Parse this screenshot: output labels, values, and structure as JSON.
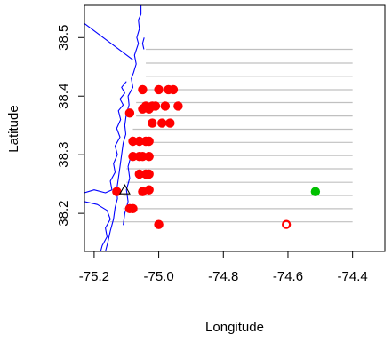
{
  "chart_data": {
    "type": "scatter",
    "xlabel": "Longitude",
    "ylabel": "Latitude",
    "xlim": [
      -75.23,
      -74.3
    ],
    "ylim": [
      38.135,
      38.555
    ],
    "x_ticks": [
      -75.2,
      -75.0,
      -74.8,
      -74.6,
      -74.4
    ],
    "x_tick_labels": [
      "-75.2",
      "-75.0",
      "-74.8",
      "-74.6",
      "-74.4"
    ],
    "y_ticks": [
      38.2,
      38.3,
      38.4,
      38.5
    ],
    "y_tick_labels": [
      "38.2",
      "38.3",
      "38.4",
      "38.5"
    ],
    "grid": false,
    "transects": {
      "color": "#c0c0c0",
      "lines": [
        {
          "x_start": -75.04,
          "x_end": -74.4,
          "y": 38.48
        },
        {
          "x_start": -75.04,
          "x_end": -74.4,
          "y": 38.4565
        },
        {
          "x_start": -75.04,
          "x_end": -74.4,
          "y": 38.434
        },
        {
          "x_start": -75.06,
          "x_end": -74.4,
          "y": 38.411
        },
        {
          "x_start": -75.07,
          "x_end": -74.4,
          "y": 38.389
        },
        {
          "x_start": -75.07,
          "x_end": -74.4,
          "y": 38.366
        },
        {
          "x_start": -75.08,
          "x_end": -74.4,
          "y": 38.3435
        },
        {
          "x_start": -75.09,
          "x_end": -74.4,
          "y": 38.321
        },
        {
          "x_start": -75.09,
          "x_end": -74.4,
          "y": 38.2985
        },
        {
          "x_start": -75.1,
          "x_end": -74.4,
          "y": 38.276
        },
        {
          "x_start": -75.1,
          "x_end": -74.4,
          "y": 38.253
        },
        {
          "x_start": -75.11,
          "x_end": -74.4,
          "y": 38.2305
        },
        {
          "x_start": -75.11,
          "x_end": -74.4,
          "y": 38.208
        },
        {
          "x_start": -75.15,
          "x_end": -74.4,
          "y": 38.1855
        }
      ]
    },
    "coastline": {
      "color": "#0000ff",
      "paths": [
        [
          [
            -75.23,
            38.524
          ],
          [
            -75.08,
            38.462
          ]
        ],
        [
          [
            -75.055,
            38.555
          ],
          [
            -75.055,
            38.54
          ],
          [
            -75.063,
            38.53
          ],
          [
            -75.06,
            38.515
          ],
          [
            -75.068,
            38.5
          ],
          [
            -75.063,
            38.49
          ],
          [
            -75.075,
            38.47
          ],
          [
            -75.07,
            38.455
          ],
          [
            -75.078,
            38.44
          ],
          [
            -75.085,
            38.43
          ],
          [
            -75.08,
            38.415
          ],
          [
            -75.095,
            38.4
          ],
          [
            -75.092,
            38.385
          ],
          [
            -75.1,
            38.37
          ],
          [
            -75.105,
            38.35
          ],
          [
            -75.102,
            38.335
          ],
          [
            -75.11,
            38.32
          ],
          [
            -75.115,
            38.3
          ],
          [
            -75.12,
            38.28
          ],
          [
            -75.125,
            38.26
          ],
          [
            -75.13,
            38.24
          ],
          [
            -75.128,
            38.225
          ],
          [
            -75.135,
            38.21
          ],
          [
            -75.14,
            38.19
          ],
          [
            -75.15,
            38.17
          ],
          [
            -75.158,
            38.15
          ],
          [
            -75.165,
            38.135
          ]
        ],
        [
          [
            -75.1,
            38.425
          ],
          [
            -75.115,
            38.415
          ],
          [
            -75.105,
            38.405
          ],
          [
            -75.12,
            38.395
          ],
          [
            -75.11,
            38.385
          ],
          [
            -75.125,
            38.375
          ],
          [
            -75.118,
            38.36
          ],
          [
            -75.13,
            38.345
          ],
          [
            -75.12,
            38.33
          ],
          [
            -75.135,
            38.315
          ],
          [
            -75.128,
            38.3
          ],
          [
            -75.14,
            38.285
          ],
          [
            -75.135,
            38.27
          ],
          [
            -75.15,
            38.255
          ],
          [
            -75.145,
            38.24
          ],
          [
            -75.165,
            38.235
          ],
          [
            -75.2,
            38.24
          ],
          [
            -75.23,
            38.235
          ]
        ],
        [
          [
            -75.23,
            38.22
          ],
          [
            -75.19,
            38.215
          ],
          [
            -75.16,
            38.205
          ],
          [
            -75.15,
            38.19
          ],
          [
            -75.165,
            38.175
          ],
          [
            -75.16,
            38.16
          ],
          [
            -75.175,
            38.145
          ],
          [
            -75.18,
            38.135
          ]
        ],
        [
          [
            -75.085,
            38.3
          ],
          [
            -75.095,
            38.28
          ],
          [
            -75.09,
            38.26
          ],
          [
            -75.1,
            38.24
          ],
          [
            -75.095,
            38.22
          ],
          [
            -75.105,
            38.2
          ],
          [
            -75.11,
            38.18
          ]
        ],
        [
          [
            -75.045,
            38.5
          ],
          [
            -75.05,
            38.49
          ],
          [
            -75.046,
            38.48
          ]
        ]
      ]
    },
    "series": [
      {
        "color": "#ff0000",
        "marker": "filled-circle",
        "x": [
          -75.05,
          -75.0,
          -74.97,
          -74.955,
          -75.02,
          -75.04,
          -75.01,
          -74.98,
          -74.94,
          -75.09,
          -75.05,
          -75.03,
          -75.02,
          -74.99,
          -74.965,
          -75.08,
          -75.06,
          -75.04,
          -75.03,
          -75.08,
          -75.06,
          -75.05,
          -75.03,
          -75.06,
          -75.04,
          -75.03,
          -75.05,
          -75.03,
          -75.13,
          -75.09,
          -75.08,
          -75.0
        ],
        "y": [
          38.411,
          38.411,
          38.411,
          38.411,
          38.383,
          38.383,
          38.383,
          38.383,
          38.383,
          38.371,
          38.378,
          38.378,
          38.354,
          38.354,
          38.354,
          38.323,
          38.323,
          38.323,
          38.323,
          38.297,
          38.297,
          38.297,
          38.297,
          38.267,
          38.267,
          38.267,
          38.237,
          38.24,
          38.237,
          38.208,
          38.208,
          38.181
        ]
      },
      {
        "color": "#00c000",
        "marker": "filled-circle",
        "x": [
          -74.515
        ],
        "y": [
          38.237
        ]
      },
      {
        "color": "#ff0000",
        "marker": "open-circle",
        "x": [
          -74.605
        ],
        "y": [
          38.181
        ]
      },
      {
        "color": "#000000",
        "marker": "open-triangle",
        "x": [
          -75.105
        ],
        "y": [
          38.24
        ]
      }
    ]
  }
}
